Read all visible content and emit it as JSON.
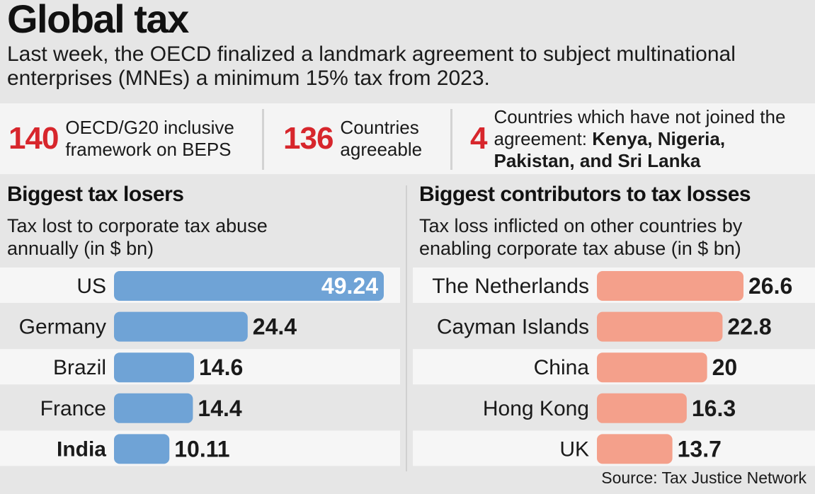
{
  "title": "Global tax",
  "subtitle": "Last week, the OECD finalized a landmark agreement to subject multinational enterprises (MNEs) a minimum 15% tax from 2023.",
  "stats": [
    {
      "number": "140",
      "text": "OECD/G20 inclusive framework on BEPS"
    },
    {
      "number": "136",
      "text": "Countries agreeable"
    },
    {
      "number": "4",
      "text": "Countries which have not joined the agreement: ",
      "bold": "Kenya, Nigeria, Pakistan, and Sri Lanka"
    }
  ],
  "source": "Source: Tax Justice Network",
  "colors": {
    "stat_red": "#d7262c",
    "losers_bar": "#6fa3d6",
    "contributors_bar": "#f4a08b"
  },
  "chart_data": [
    {
      "type": "bar",
      "orientation": "horizontal",
      "title": "Biggest tax losers",
      "subtitle": "Tax lost to corporate tax abuse annually (in $ bn)",
      "categories": [
        "US",
        "Germany",
        "Brazil",
        "France",
        "India"
      ],
      "values": [
        49.24,
        24.4,
        14.6,
        14.4,
        10.11
      ],
      "labels": [
        "49.24",
        "24.4",
        "14.6",
        "14.4",
        "10.11"
      ],
      "highlight": "India",
      "color": "#6fa3d6"
    },
    {
      "type": "bar",
      "orientation": "horizontal",
      "title": "Biggest contributors to tax losses",
      "subtitle": "Tax loss inflicted on other countries by enabling corporate tax abuse (in $ bn)",
      "categories": [
        "The Netherlands",
        "Cayman Islands",
        "China",
        "Hong Kong",
        "UK"
      ],
      "values": [
        26.6,
        22.8,
        20,
        16.3,
        13.7
      ],
      "labels": [
        "26.6",
        "22.8",
        "20",
        "16.3",
        "13.7"
      ],
      "color": "#f4a08b"
    }
  ]
}
